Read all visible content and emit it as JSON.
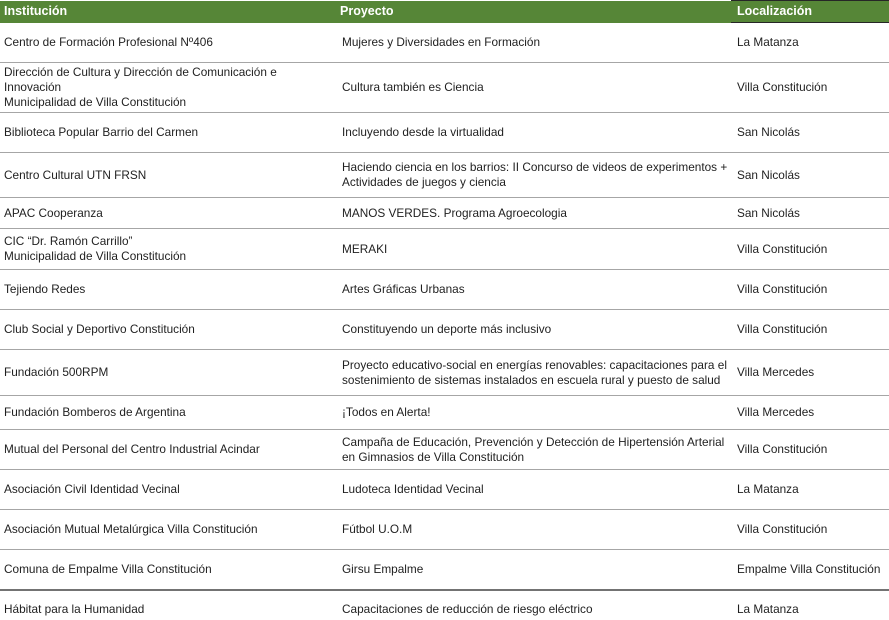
{
  "colors": {
    "header_bg": "#568637",
    "header_text": "#ffffff",
    "header_accent_border": "#262626",
    "row_divider": "#a6a6a6",
    "body_text": "#1f1f1f"
  },
  "table": {
    "columns": [
      {
        "id": "institucion",
        "label": "Institución"
      },
      {
        "id": "proyecto",
        "label": "Proyecto"
      },
      {
        "id": "localizacion",
        "label": "Localización"
      }
    ],
    "rows": [
      {
        "institucion": "Centro de Formación Profesional Nº406",
        "proyecto": "Mujeres y Diversidades en Formación",
        "localizacion": "La Matanza"
      },
      {
        "institucion": "Dirección de Cultura y Dirección de Comunicación e Innovación\nMunicipalidad de Villa Constitución",
        "proyecto": "Cultura también es Ciencia",
        "localizacion": "Villa Constitución"
      },
      {
        "institucion": "Biblioteca Popular Barrio del Carmen",
        "proyecto": "Incluyendo desde la virtualidad",
        "localizacion": "San Nicolás"
      },
      {
        "institucion": "Centro Cultural UTN FRSN",
        "proyecto": "Haciendo ciencia en los barrios: II Concurso de videos de experimentos + Actividades de juegos y ciencia",
        "localizacion": "San Nicolás"
      },
      {
        "institucion": "APAC Cooperanza",
        "proyecto": "MANOS VERDES. Programa Agroecologia",
        "localizacion": "San Nicolás"
      },
      {
        "institucion": "CIC “Dr. Ramón Carrillo”\nMunicipalidad de Villa Constitución",
        "proyecto": "MERAKI",
        "localizacion": "Villa Constitución"
      },
      {
        "institucion": "Tejiendo Redes",
        "proyecto": "Artes Gráficas Urbanas",
        "localizacion": "Villa Constitución"
      },
      {
        "institucion": "Club Social y Deportivo Constitución",
        "proyecto": "Constituyendo un deporte más inclusivo",
        "localizacion": "Villa Constitución"
      },
      {
        "institucion": "Fundación 500RPM",
        "proyecto": "Proyecto educativo-social en energías renovables: capacitaciones para el sostenimiento de sistemas instalados en escuela rural y puesto de salud",
        "localizacion": "Villa Mercedes"
      },
      {
        "institucion": "Fundación Bomberos de Argentina",
        "proyecto": "¡Todos en Alerta!",
        "localizacion": "Villa Mercedes"
      },
      {
        "institucion": "Mutual del Personal del Centro Industrial Acindar",
        "proyecto": "Campaña de Educación, Prevención y Detección de Hipertensión Arterial en Gimnasios de Villa Constitución",
        "localizacion": "Villa Constitución"
      },
      {
        "institucion": "Asociación Civil Identidad Vecinal",
        "proyecto": "Ludoteca Identidad Vecinal",
        "localizacion": "La Matanza"
      },
      {
        "institucion": "Asociación Mutual Metalúrgica Villa Constitución",
        "proyecto": "Fútbol U.O.M",
        "localizacion": "Villa Constitución"
      },
      {
        "institucion": "Comuna de Empalme Villa Constitución",
        "proyecto": "Girsu Empalme",
        "localizacion": "Empalme Villa Constitución"
      },
      {
        "institucion": "Hábitat para la Humanidad",
        "proyecto": "Capacitaciones de reducción de riesgo eléctrico",
        "localizacion": "La Matanza"
      }
    ]
  }
}
